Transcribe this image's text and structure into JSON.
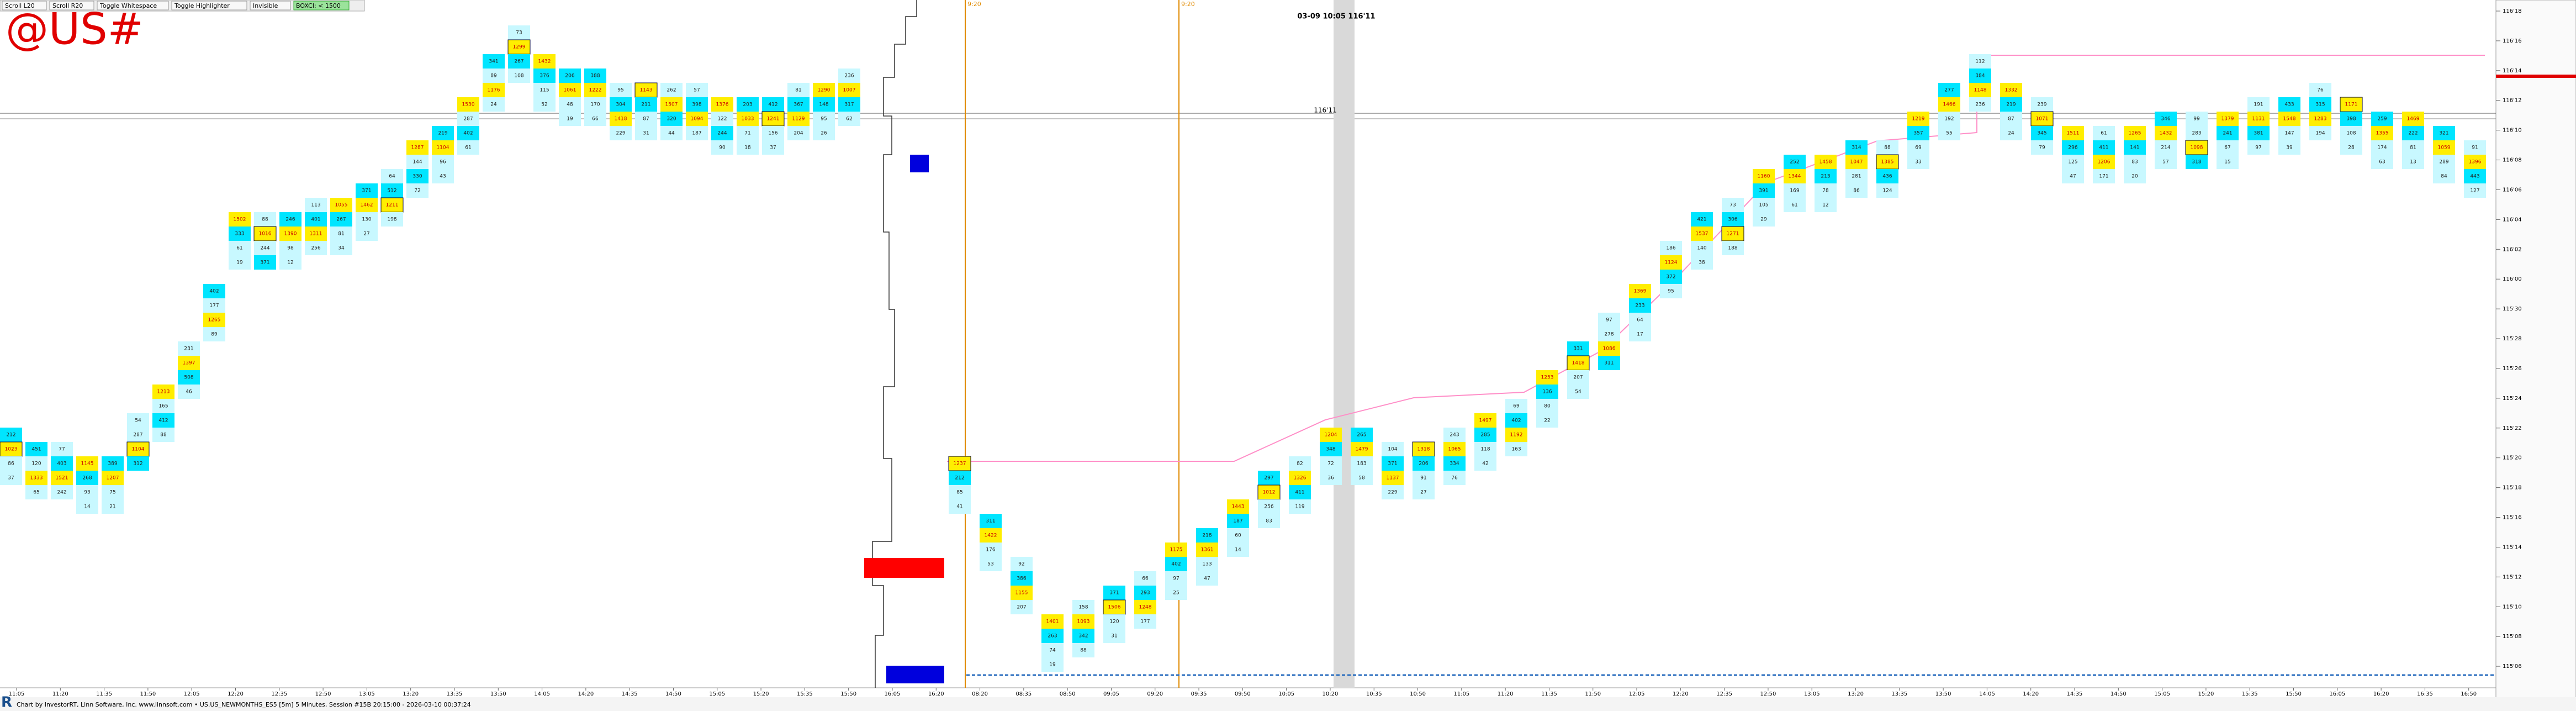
{
  "toolbar": {
    "buttons": [
      "Scroll L20",
      "Scroll R20",
      "Toggle Whitespace",
      "Toggle Highlighter",
      "Invisible"
    ],
    "badge": "BOXCI: < 1500"
  },
  "symbol": "@US#",
  "annotation": {
    "header": "03-09 10:05  116'11",
    "line_label": "116'11",
    "marker_1": "9:20",
    "marker_2": "9:20"
  },
  "price_axis": [
    "116'18",
    "116'16",
    "116'14",
    "116'12",
    "116'10",
    "116'08",
    "116'06",
    "116'04",
    "116'02",
    "116'00",
    "115'30",
    "115'28",
    "115'26",
    "115'24",
    "115'22",
    "115'20",
    "115'18",
    "115'16",
    "115'14",
    "115'12",
    "115'10",
    "115'08",
    "115'06"
  ],
  "time_axis": [
    "11:05",
    "11:20",
    "11:35",
    "11:50",
    "12:05",
    "12:20",
    "12:35",
    "12:50",
    "13:05",
    "13:20",
    "13:35",
    "13:50",
    "14:05",
    "14:20",
    "14:35",
    "14:50",
    "15:05",
    "15:20",
    "15:35",
    "15:50",
    "16:05",
    "16:20",
    "08:20",
    "08:35",
    "08:50",
    "09:05",
    "09:20",
    "09:35",
    "09:50",
    "10:05",
    "10:20",
    "10:35",
    "10:50",
    "11:05",
    "11:20",
    "11:35",
    "11:50",
    "12:05",
    "12:20",
    "12:35",
    "12:50",
    "13:05",
    "13:20",
    "13:35",
    "13:50",
    "14:05",
    "14:20",
    "14:35",
    "14:50",
    "15:05",
    "15:20",
    "15:35",
    "15:50",
    "16:05",
    "16:20",
    "16:35",
    "16:50"
  ],
  "footer": "Chart by InvestorRT, Linn Software, Inc. www.linnsoft.com • US.US_NEWMONTHS_ES5 [5m] 5 Minutes, Session #15B 20:15:00 - 2026-03-10 00:37:24",
  "sessions": [
    {
      "columns": [
        [
          212,
          1023,
          86,
          37
        ],
        [
          451,
          120,
          1333,
          65
        ],
        [
          77,
          403,
          1521,
          242
        ],
        [
          1145,
          268,
          93,
          14
        ],
        [
          389,
          1207,
          75,
          21
        ],
        [
          54,
          287,
          1104,
          312
        ],
        [
          1213,
          165,
          412,
          88
        ],
        [
          231,
          1397,
          508,
          46
        ],
        [
          402,
          177,
          1265,
          89
        ],
        [
          1502,
          333,
          61,
          19
        ],
        [
          88,
          1016,
          244,
          371
        ],
        [
          246,
          1390,
          98,
          12
        ],
        [
          113,
          401,
          1311,
          256
        ],
        [
          1055,
          267,
          81,
          34
        ],
        [
          371,
          1462,
          130,
          27
        ],
        [
          64,
          512,
          1211,
          198
        ],
        [
          1287,
          144,
          330,
          72
        ],
        [
          219,
          1104,
          96,
          43
        ],
        [
          1530,
          287,
          402,
          61
        ],
        [
          341,
          89,
          1176,
          24
        ],
        [
          73,
          1299,
          267,
          108
        ],
        [
          1432,
          376,
          115,
          52
        ],
        [
          206,
          1061,
          48,
          19
        ],
        [
          388,
          1222,
          170,
          66
        ],
        [
          95,
          304,
          1418,
          229
        ],
        [
          1143,
          211,
          87,
          31
        ],
        [
          262,
          1507,
          320,
          44
        ],
        [
          57,
          398,
          1094,
          187
        ],
        [
          1376,
          122,
          244,
          90
        ],
        [
          203,
          1033,
          71,
          18
        ],
        [
          412,
          1241,
          156,
          37
        ],
        [
          81,
          367,
          1129,
          204
        ],
        [
          1290,
          148,
          95,
          26
        ],
        [
          236,
          1007,
          317,
          62
        ]
      ]
    },
    {
      "columns": [
        [
          1237,
          212,
          85,
          41
        ],
        [
          311,
          1422,
          176,
          53
        ],
        [
          92,
          386,
          1155,
          207
        ],
        [
          1401,
          263,
          74,
          19
        ],
        [
          158,
          1093,
          342,
          88
        ],
        [
          371,
          1506,
          120,
          31
        ],
        [
          66,
          293,
          1248,
          177
        ],
        [
          1175,
          402,
          97,
          25
        ],
        [
          218,
          1361,
          133,
          47
        ],
        [
          1443,
          187,
          60,
          14
        ],
        [
          297,
          1012,
          256,
          83
        ],
        [
          82,
          1326,
          411,
          119
        ],
        [
          1204,
          348,
          72,
          36
        ],
        [
          265,
          1479,
          183,
          58
        ],
        [
          104,
          371,
          1137,
          229
        ],
        [
          1318,
          206,
          91,
          27
        ],
        [
          243,
          1065,
          334,
          76
        ],
        [
          1497,
          285,
          118,
          42
        ],
        [
          69,
          402,
          1192,
          163
        ],
        [
          1253,
          136,
          80,
          22
        ],
        [
          331,
          1418,
          207,
          54
        ],
        [
          97,
          278,
          1086,
          311
        ],
        [
          1369,
          233,
          64,
          17
        ],
        [
          186,
          1124,
          372,
          95
        ],
        [
          421,
          1537,
          140,
          38
        ],
        [
          73,
          306,
          1271,
          188
        ],
        [
          1160,
          391,
          105,
          29
        ],
        [
          252,
          1344,
          169,
          61
        ],
        [
          1458,
          213,
          78,
          12
        ],
        [
          314,
          1047,
          281,
          86
        ],
        [
          88,
          1385,
          436,
          124
        ],
        [
          1219,
          357,
          69,
          33
        ],
        [
          277,
          1466,
          192,
          55
        ],
        [
          112,
          384,
          1148,
          236
        ],
        [
          1332,
          219,
          87,
          24
        ],
        [
          239,
          1071,
          345,
          79
        ],
        [
          1511,
          296,
          125,
          47
        ],
        [
          61,
          411,
          1206,
          171
        ],
        [
          1265,
          141,
          83,
          20
        ],
        [
          346,
          1432,
          214,
          57
        ],
        [
          99,
          283,
          1098,
          318
        ],
        [
          1379,
          241,
          67,
          15
        ],
        [
          191,
          1131,
          381,
          97
        ],
        [
          433,
          1548,
          147,
          39
        ],
        [
          76,
          315,
          1283,
          194
        ],
        [
          1171,
          398,
          108,
          28
        ],
        [
          259,
          1355,
          174,
          63
        ],
        [
          1469,
          222,
          81,
          13
        ],
        [
          321,
          1059,
          289,
          84
        ],
        [
          91,
          1396,
          443,
          127
        ]
      ]
    }
  ]
}
